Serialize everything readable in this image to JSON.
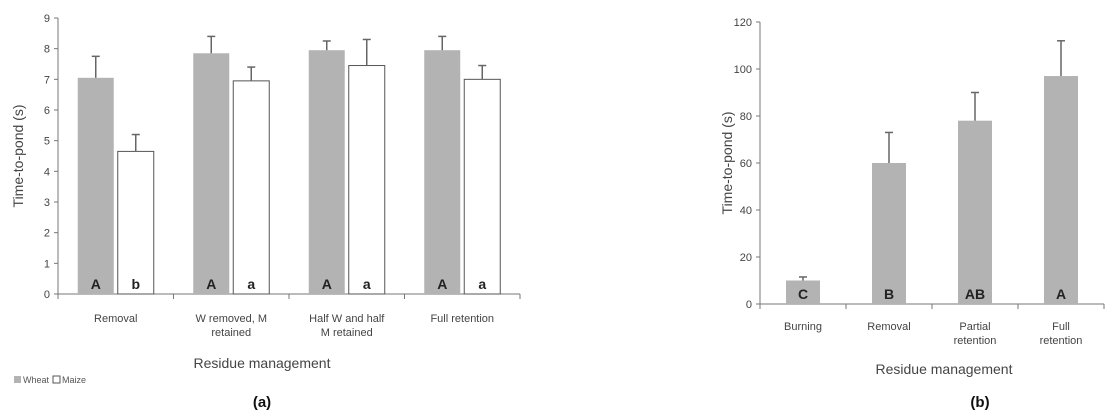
{
  "colors": {
    "wheat": "#b3b3b3",
    "maize": "#ffffff",
    "bar_single": "#b3b3b3",
    "axis": "#777777",
    "error": "#666666"
  },
  "chart_data": [
    {
      "panel": "(a)",
      "type": "bar",
      "ylabel": "Time-to-pond (s)",
      "xlabel": "Residue management",
      "ylim": [
        0,
        9
      ],
      "yticks": [
        0,
        1,
        2,
        3,
        4,
        5,
        6,
        7,
        8,
        9
      ],
      "categories": [
        [
          "Removal"
        ],
        [
          "W removed, M",
          "retained"
        ],
        [
          "Half W and half",
          "M retained"
        ],
        [
          "Full retention"
        ]
      ],
      "series": [
        {
          "name": "Wheat",
          "values": [
            7.05,
            7.85,
            7.95,
            7.95
          ],
          "errors": [
            0.7,
            0.55,
            0.3,
            0.45
          ],
          "letters": [
            "A",
            "A",
            "A",
            "A"
          ]
        },
        {
          "name": "Maize",
          "values": [
            4.65,
            6.95,
            7.45,
            7.0
          ],
          "errors": [
            0.55,
            0.45,
            0.85,
            0.45
          ],
          "letters": [
            "b",
            "a",
            "a",
            "a"
          ]
        }
      ],
      "legend": "bottom-left",
      "grid": false
    },
    {
      "panel": "(b)",
      "type": "bar",
      "ylabel": "Time-to-pond (s)",
      "xlabel": "Residue management",
      "ylim": [
        0,
        120
      ],
      "yticks": [
        0,
        20,
        40,
        60,
        80,
        100,
        120
      ],
      "categories": [
        [
          "Burning"
        ],
        [
          "Removal"
        ],
        [
          "Partial",
          "retention"
        ],
        [
          "Full",
          "retention"
        ]
      ],
      "values": [
        10,
        60,
        78,
        97
      ],
      "errors": [
        1.5,
        13,
        12,
        15
      ],
      "letters": [
        "C",
        "B",
        "AB",
        "A"
      ],
      "grid": false
    }
  ]
}
